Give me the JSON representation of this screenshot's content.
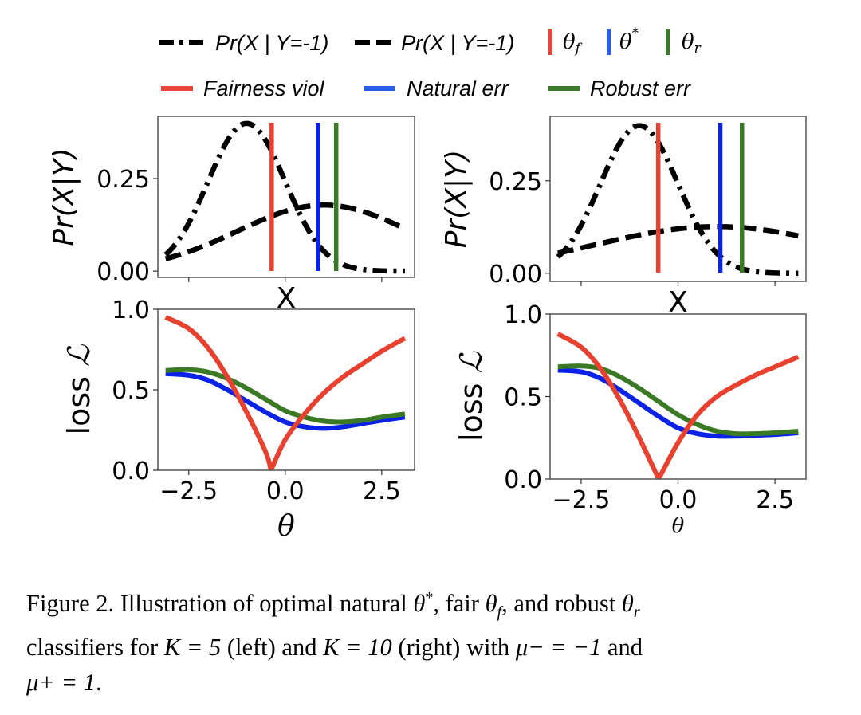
{
  "legend": {
    "row1": [
      {
        "label": "Pr(X | Y=-1)",
        "style": "dashdot",
        "color": "#000000"
      },
      {
        "label": "Pr(X | Y=-1)",
        "style": "dashed",
        "color": "#000000"
      },
      {
        "label": "θf",
        "style": "vbar",
        "color": "#e8463a"
      },
      {
        "label": "θ*",
        "style": "vbar",
        "color": "#2a5de6"
      },
      {
        "label": "θr",
        "style": "vbar",
        "color": "#3a7a2a"
      }
    ],
    "row2": [
      {
        "label": "Fairness viol",
        "style": "solid",
        "color": "#e8463a"
      },
      {
        "label": "Natural err",
        "style": "solid",
        "color": "#2a5de6"
      },
      {
        "label": "Robust err",
        "style": "solid",
        "color": "#3a7a2a"
      }
    ]
  },
  "colors": {
    "fair": "#e8412f",
    "natural": "#0a22e6",
    "robust": "#3a7a24",
    "density": "#000000"
  },
  "chart_data": [
    {
      "type": "line",
      "panel": "top-left",
      "title": "",
      "xlabel": "X",
      "ylabel": "Pr(X|Y)",
      "xticks": [
        -2.5,
        0.0,
        2.5
      ],
      "xtick_labels_visible": false,
      "yticks": [
        0.0,
        0.25
      ],
      "ytick_labels": [
        "0.00",
        "0.25"
      ],
      "xlim": [
        -3.3,
        3.35
      ],
      "ylim": [
        -0.017,
        0.418
      ],
      "series": [
        {
          "name": "Pr(X | Y=-1)",
          "style": "dashdot",
          "mean": -1,
          "std": 1,
          "x": [
            -3.1,
            -2.5,
            -2.0,
            -1.5,
            -1.0,
            -0.5,
            0.0,
            0.5,
            1.0,
            1.5,
            2.0,
            2.5,
            3.1
          ],
          "y": [
            0.044,
            0.13,
            0.242,
            0.352,
            0.399,
            0.352,
            0.242,
            0.13,
            0.054,
            0.018,
            0.004,
            0.001,
            0.0
          ]
        },
        {
          "name": "Pr(X | Y=-1)",
          "style": "dashed",
          "mean": 1,
          "std": 2.236,
          "x": [
            -3.1,
            -2.5,
            -2.0,
            -1.5,
            -1.0,
            -0.5,
            0.0,
            0.5,
            1.0,
            1.5,
            2.0,
            2.5,
            3.1
          ],
          "y": [
            0.032,
            0.052,
            0.073,
            0.095,
            0.118,
            0.142,
            0.162,
            0.174,
            0.178,
            0.174,
            0.162,
            0.142,
            0.11
          ]
        }
      ],
      "vlines": [
        {
          "name": "θf",
          "x": -0.35,
          "color_key": "fair"
        },
        {
          "name": "θ*",
          "x": 0.85,
          "color_key": "natural"
        },
        {
          "name": "θr",
          "x": 1.32,
          "color_key": "robust"
        }
      ]
    },
    {
      "type": "line",
      "panel": "bottom-left",
      "title": "",
      "xlabel": "θ",
      "ylabel": "loss ℒ",
      "xticks": [
        -2.5,
        0.0,
        2.5
      ],
      "xtick_labels": [
        "−2.5",
        "0.0",
        "2.5"
      ],
      "yticks": [
        0.0,
        0.5,
        1.0
      ],
      "ytick_labels": [
        "0.0",
        "0.5",
        "1.0"
      ],
      "xlim": [
        -3.3,
        3.35
      ],
      "ylim": [
        0.0,
        1.0
      ],
      "series": [
        {
          "name": "Fairness viol",
          "color_key": "fair",
          "x": [
            -3.1,
            -2.5,
            -2.0,
            -1.5,
            -1.0,
            -0.5,
            -0.37,
            0.0,
            0.5,
            1.0,
            1.5,
            2.0,
            2.5,
            3.1
          ],
          "y": [
            0.95,
            0.88,
            0.76,
            0.58,
            0.36,
            0.11,
            0.0,
            0.19,
            0.35,
            0.48,
            0.58,
            0.66,
            0.74,
            0.82
          ]
        },
        {
          "name": "Natural err",
          "color_key": "natural",
          "x": [
            -3.1,
            -2.5,
            -2.0,
            -1.5,
            -1.0,
            -0.5,
            0.0,
            0.5,
            1.0,
            1.5,
            2.0,
            2.5,
            3.1
          ],
          "y": [
            0.6,
            0.59,
            0.56,
            0.5,
            0.43,
            0.36,
            0.3,
            0.27,
            0.26,
            0.27,
            0.29,
            0.31,
            0.33
          ]
        },
        {
          "name": "Robust err",
          "color_key": "robust",
          "x": [
            -3.1,
            -2.5,
            -2.0,
            -1.5,
            -1.0,
            -0.5,
            0.0,
            0.5,
            1.0,
            1.5,
            2.0,
            2.5,
            3.1
          ],
          "y": [
            0.62,
            0.625,
            0.61,
            0.57,
            0.51,
            0.44,
            0.37,
            0.33,
            0.305,
            0.3,
            0.31,
            0.33,
            0.35
          ]
        }
      ]
    },
    {
      "type": "line",
      "panel": "top-right",
      "title": "",
      "xlabel": "X",
      "ylabel": "Pr(X|Y)",
      "xticks": [
        -2.5,
        0.0,
        2.5
      ],
      "xtick_labels_visible": false,
      "yticks": [
        0.0,
        0.25
      ],
      "ytick_labels": [
        "0.00",
        "0.25"
      ],
      "xlim": [
        -3.3,
        3.3
      ],
      "ylim": [
        -0.022,
        0.424
      ],
      "series": [
        {
          "name": "Pr(X | Y=-1)",
          "style": "dashdot",
          "mean": -1,
          "std": 1,
          "x": [
            -3.1,
            -2.5,
            -2.0,
            -1.5,
            -1.0,
            -0.5,
            0.0,
            0.5,
            1.0,
            1.5,
            2.0,
            2.5,
            3.1
          ],
          "y": [
            0.044,
            0.13,
            0.242,
            0.352,
            0.399,
            0.352,
            0.242,
            0.13,
            0.054,
            0.018,
            0.004,
            0.001,
            0.0
          ]
        },
        {
          "name": "Pr(X | Y=-1)",
          "style": "dashed",
          "mean": 1,
          "std": 3.162,
          "x": [
            -3.1,
            -2.5,
            -2.0,
            -1.5,
            -1.0,
            -0.5,
            0.0,
            0.5,
            1.0,
            1.5,
            2.0,
            2.5,
            3.1
          ],
          "y": [
            0.054,
            0.068,
            0.081,
            0.092,
            0.103,
            0.113,
            0.12,
            0.125,
            0.126,
            0.125,
            0.12,
            0.113,
            0.098
          ]
        }
      ],
      "vlines": [
        {
          "name": "θf",
          "x": -0.51,
          "color_key": "fair"
        },
        {
          "name": "θ*",
          "x": 1.09,
          "color_key": "natural"
        },
        {
          "name": "θr",
          "x": 1.65,
          "color_key": "robust"
        }
      ]
    },
    {
      "type": "line",
      "panel": "bottom-right",
      "title": "",
      "xlabel": "θ",
      "ylabel": "loss ℒ",
      "xticks": [
        -2.5,
        0.0,
        2.5
      ],
      "xtick_labels": [
        "−2.5",
        "0.0",
        "2.5"
      ],
      "yticks": [
        0.0,
        0.5,
        1.0
      ],
      "ytick_labels": [
        "0.0",
        "0.5",
        "1.0"
      ],
      "xlim": [
        -3.3,
        3.3
      ],
      "ylim": [
        0.0,
        1.0
      ],
      "series": [
        {
          "name": "Fairness viol",
          "color_key": "fair",
          "x": [
            -3.1,
            -2.5,
            -2.0,
            -1.5,
            -1.0,
            -0.5,
            0.0,
            0.5,
            1.0,
            1.5,
            2.0,
            2.5,
            3.1
          ],
          "y": [
            0.88,
            0.8,
            0.67,
            0.48,
            0.25,
            0.0,
            0.22,
            0.39,
            0.5,
            0.57,
            0.63,
            0.68,
            0.74
          ]
        },
        {
          "name": "Natural err",
          "color_key": "natural",
          "x": [
            -3.1,
            -2.5,
            -2.0,
            -1.5,
            -1.0,
            -0.5,
            0.0,
            0.5,
            1.0,
            1.5,
            2.0,
            2.5,
            3.1
          ],
          "y": [
            0.66,
            0.65,
            0.61,
            0.54,
            0.46,
            0.38,
            0.31,
            0.275,
            0.26,
            0.26,
            0.265,
            0.27,
            0.28
          ]
        },
        {
          "name": "Robust err",
          "color_key": "robust",
          "x": [
            -3.1,
            -2.5,
            -2.0,
            -1.5,
            -1.0,
            -0.5,
            0.0,
            0.5,
            1.0,
            1.5,
            2.0,
            2.5,
            3.1
          ],
          "y": [
            0.68,
            0.685,
            0.67,
            0.62,
            0.55,
            0.47,
            0.39,
            0.33,
            0.29,
            0.275,
            0.275,
            0.28,
            0.29
          ]
        }
      ]
    }
  ],
  "caption": {
    "line1_a": "Figure 2. Illustration of optimal natural ",
    "theta_star": "θ*",
    "line1_b": ", fair ",
    "theta_f": "θf",
    "line1_c": ", and robust ",
    "theta_r": "θr",
    "line2_a": "classifiers for ",
    "K1": "K = 5",
    "line2_b": " (left) and ",
    "K2": "K = 10",
    "line2_c": " (right) with ",
    "mu_minus": "μ− = −1",
    "line2_d": " and",
    "mu_plus": "μ+ = 1",
    "line3_end": "."
  }
}
